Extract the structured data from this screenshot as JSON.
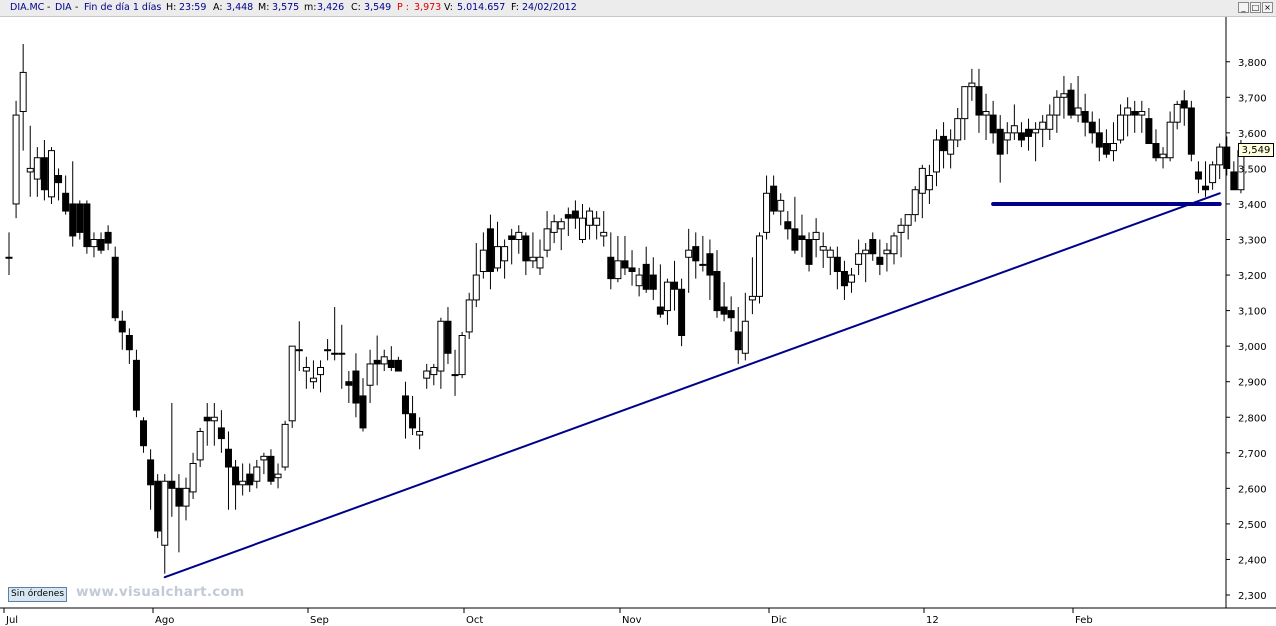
{
  "header": {
    "symbol": "DIA.MC",
    "name": "DIA",
    "period": "Fin de día 1 días",
    "h_label": "H:",
    "h_value": "23:59",
    "a_label": "A:",
    "a_value": "3,448",
    "m_label": "M:",
    "m_value": "3,575",
    "min_label": "m:",
    "min_value": "3,426",
    "c_label": "C:",
    "c_value": "3,549",
    "p_label": "P :",
    "p_value": "3,973",
    "v_label": "V:",
    "v_value": "5.014.657",
    "f_label": "F:",
    "f_value": "24/02/2012"
  },
  "window_buttons": {
    "minimize": "_",
    "maximize": "□",
    "close": "×"
  },
  "orders_button": "Sin órdenes",
  "watermark": "www.visualchart.com",
  "last_price_tag": "3,549",
  "colors": {
    "up_fill": "#ffffff",
    "down_fill": "#000000",
    "trendline": "#00008b",
    "background": "#ffffff"
  },
  "chart_data": {
    "type": "candlestick",
    "x_labels": [
      "Jul",
      "Ago",
      "Sep",
      "Oct",
      "Nov",
      "Dic",
      "12",
      "Feb"
    ],
    "x_label_index": [
      0,
      21,
      43,
      65,
      87,
      108,
      130,
      151
    ],
    "y_ticks": [
      "2,300",
      "2,400",
      "2,500",
      "2,600",
      "2,700",
      "2,800",
      "2,900",
      "3,000",
      "3,100",
      "3,200",
      "3,300",
      "3,400",
      "3,500",
      "3,600",
      "3,700",
      "3,800"
    ],
    "ylim": [
      2.27,
      3.93
    ],
    "candles": [
      [
        3.25,
        3.32,
        3.2,
        3.25
      ],
      [
        3.4,
        3.69,
        3.36,
        3.65
      ],
      [
        3.66,
        3.85,
        3.55,
        3.77
      ],
      [
        3.49,
        3.62,
        3.42,
        3.5
      ],
      [
        3.47,
        3.56,
        3.42,
        3.53
      ],
      [
        3.53,
        3.58,
        3.41,
        3.44
      ],
      [
        3.42,
        3.56,
        3.4,
        3.55
      ],
      [
        3.48,
        3.5,
        3.41,
        3.46
      ],
      [
        3.43,
        3.48,
        3.37,
        3.38
      ],
      [
        3.4,
        3.52,
        3.28,
        3.31
      ],
      [
        3.4,
        3.41,
        3.3,
        3.32
      ],
      [
        3.4,
        3.41,
        3.26,
        3.28
      ],
      [
        3.28,
        3.32,
        3.25,
        3.3
      ],
      [
        3.3,
        3.32,
        3.26,
        3.27
      ],
      [
        3.32,
        3.34,
        3.27,
        3.29
      ],
      [
        3.25,
        3.28,
        3.07,
        3.08
      ],
      [
        3.07,
        3.1,
        2.99,
        3.04
      ],
      [
        3.03,
        3.05,
        2.95,
        2.99
      ],
      [
        2.96,
        2.99,
        2.8,
        2.82
      ],
      [
        2.79,
        2.8,
        2.7,
        2.72
      ],
      [
        2.68,
        2.71,
        2.54,
        2.61
      ],
      [
        2.62,
        2.64,
        2.46,
        2.48
      ],
      [
        2.44,
        2.64,
        2.36,
        2.62
      ],
      [
        2.62,
        2.84,
        2.52,
        2.6
      ],
      [
        2.6,
        2.64,
        2.42,
        2.55
      ],
      [
        2.55,
        2.63,
        2.51,
        2.6
      ],
      [
        2.59,
        2.7,
        2.57,
        2.67
      ],
      [
        2.68,
        2.77,
        2.66,
        2.76
      ],
      [
        2.8,
        2.84,
        2.72,
        2.79
      ],
      [
        2.79,
        2.84,
        2.72,
        2.8
      ],
      [
        2.77,
        2.82,
        2.7,
        2.74
      ],
      [
        2.71,
        2.76,
        2.54,
        2.66
      ],
      [
        2.66,
        2.68,
        2.54,
        2.61
      ],
      [
        2.61,
        2.67,
        2.58,
        2.62
      ],
      [
        2.64,
        2.67,
        2.59,
        2.61
      ],
      [
        2.62,
        2.68,
        2.6,
        2.66
      ],
      [
        2.68,
        2.7,
        2.64,
        2.69
      ],
      [
        2.69,
        2.71,
        2.61,
        2.62
      ],
      [
        2.63,
        2.67,
        2.6,
        2.64
      ],
      [
        2.66,
        2.79,
        2.65,
        2.78
      ],
      [
        2.79,
        3.0,
        2.77,
        3.0
      ],
      [
        2.99,
        3.07,
        2.93,
        2.99
      ],
      [
        2.93,
        2.97,
        2.88,
        2.94
      ],
      [
        2.9,
        2.96,
        2.88,
        2.91
      ],
      [
        2.92,
        2.96,
        2.87,
        2.94
      ],
      [
        2.99,
        3.02,
        2.96,
        2.99
      ],
      [
        2.98,
        3.11,
        2.96,
        2.98
      ],
      [
        2.98,
        3.06,
        2.88,
        2.98
      ],
      [
        2.9,
        2.93,
        2.84,
        2.89
      ],
      [
        2.93,
        2.98,
        2.8,
        2.84
      ],
      [
        2.86,
        2.91,
        2.76,
        2.77
      ],
      [
        2.89,
        2.99,
        2.84,
        2.95
      ],
      [
        2.96,
        3.03,
        2.89,
        2.95
      ],
      [
        2.95,
        2.99,
        2.93,
        2.97
      ],
      [
        2.96,
        3.0,
        2.93,
        2.94
      ],
      [
        2.96,
        2.97,
        2.93,
        2.93
      ],
      [
        2.86,
        2.9,
        2.74,
        2.81
      ],
      [
        2.81,
        2.86,
        2.75,
        2.77
      ],
      [
        2.75,
        2.8,
        2.71,
        2.76
      ],
      [
        2.91,
        2.95,
        2.88,
        2.93
      ],
      [
        2.92,
        2.95,
        2.89,
        2.94
      ],
      [
        2.93,
        3.08,
        2.88,
        3.07
      ],
      [
        3.07,
        3.11,
        2.95,
        2.98
      ],
      [
        2.92,
        2.99,
        2.86,
        2.92
      ],
      [
        2.92,
        3.04,
        2.91,
        3.03
      ],
      [
        3.04,
        3.15,
        3.02,
        3.13
      ],
      [
        3.13,
        3.29,
        3.11,
        3.2
      ],
      [
        3.21,
        3.32,
        3.19,
        3.27
      ],
      [
        3.33,
        3.37,
        3.16,
        3.21
      ],
      [
        3.22,
        3.35,
        3.21,
        3.28
      ],
      [
        3.24,
        3.3,
        3.19,
        3.28
      ],
      [
        3.31,
        3.33,
        3.23,
        3.3
      ],
      [
        3.3,
        3.34,
        3.26,
        3.32
      ],
      [
        3.31,
        3.32,
        3.2,
        3.24
      ],
      [
        3.24,
        3.32,
        3.22,
        3.25
      ],
      [
        3.22,
        3.3,
        3.2,
        3.25
      ],
      [
        3.27,
        3.38,
        3.25,
        3.33
      ],
      [
        3.32,
        3.37,
        3.29,
        3.35
      ],
      [
        3.33,
        3.36,
        3.27,
        3.35
      ],
      [
        3.37,
        3.39,
        3.31,
        3.36
      ],
      [
        3.38,
        3.41,
        3.33,
        3.36
      ],
      [
        3.3,
        3.4,
        3.29,
        3.36
      ],
      [
        3.34,
        3.39,
        3.3,
        3.38
      ],
      [
        3.34,
        3.38,
        3.3,
        3.36
      ],
      [
        3.31,
        3.38,
        3.28,
        3.32
      ],
      [
        3.25,
        3.32,
        3.16,
        3.19
      ],
      [
        3.19,
        3.31,
        3.18,
        3.24
      ],
      [
        3.24,
        3.31,
        3.2,
        3.22
      ],
      [
        3.22,
        3.27,
        3.17,
        3.21
      ],
      [
        3.17,
        3.22,
        3.14,
        3.2
      ],
      [
        3.23,
        3.28,
        3.15,
        3.16
      ],
      [
        3.2,
        3.25,
        3.13,
        3.16
      ],
      [
        3.11,
        3.23,
        3.08,
        3.09
      ],
      [
        3.1,
        3.19,
        3.06,
        3.18
      ],
      [
        3.18,
        3.24,
        3.1,
        3.16
      ],
      [
        3.16,
        3.19,
        3.0,
        3.03
      ],
      [
        3.25,
        3.33,
        3.15,
        3.27
      ],
      [
        3.28,
        3.32,
        3.19,
        3.24
      ],
      [
        3.23,
        3.31,
        3.21,
        3.23
      ],
      [
        3.26,
        3.3,
        3.13,
        3.2
      ],
      [
        3.21,
        3.27,
        3.08,
        3.1
      ],
      [
        3.11,
        3.18,
        3.07,
        3.09
      ],
      [
        3.1,
        3.14,
        3.04,
        3.08
      ],
      [
        3.04,
        3.11,
        2.95,
        2.99
      ],
      [
        2.98,
        3.15,
        2.96,
        3.07
      ],
      [
        3.13,
        3.25,
        3.09,
        3.14
      ],
      [
        3.14,
        3.32,
        3.12,
        3.31
      ],
      [
        3.32,
        3.48,
        3.3,
        3.43
      ],
      [
        3.45,
        3.48,
        3.37,
        3.38
      ],
      [
        3.38,
        3.43,
        3.34,
        3.41
      ],
      [
        3.35,
        3.38,
        3.3,
        3.33
      ],
      [
        3.33,
        3.42,
        3.26,
        3.27
      ],
      [
        3.31,
        3.37,
        3.25,
        3.3
      ],
      [
        3.3,
        3.32,
        3.21,
        3.23
      ],
      [
        3.3,
        3.36,
        3.25,
        3.32
      ],
      [
        3.27,
        3.32,
        3.22,
        3.28
      ],
      [
        3.25,
        3.28,
        3.2,
        3.27
      ],
      [
        3.25,
        3.28,
        3.16,
        3.21
      ],
      [
        3.21,
        3.24,
        3.13,
        3.17
      ],
      [
        3.18,
        3.22,
        3.15,
        3.2
      ],
      [
        3.23,
        3.3,
        3.2,
        3.26
      ],
      [
        3.26,
        3.29,
        3.18,
        3.27
      ],
      [
        3.3,
        3.32,
        3.24,
        3.26
      ],
      [
        3.25,
        3.3,
        3.2,
        3.23
      ],
      [
        3.26,
        3.29,
        3.21,
        3.27
      ],
      [
        3.26,
        3.32,
        3.23,
        3.31
      ],
      [
        3.32,
        3.36,
        3.25,
        3.34
      ],
      [
        3.34,
        3.36,
        3.3,
        3.37
      ],
      [
        3.37,
        3.45,
        3.35,
        3.44
      ],
      [
        3.43,
        3.51,
        3.36,
        3.5
      ],
      [
        3.44,
        3.51,
        3.4,
        3.48
      ],
      [
        3.49,
        3.61,
        3.45,
        3.58
      ],
      [
        3.59,
        3.63,
        3.5,
        3.55
      ],
      [
        3.54,
        3.61,
        3.5,
        3.58
      ],
      [
        3.58,
        3.67,
        3.56,
        3.64
      ],
      [
        3.64,
        3.72,
        3.58,
        3.73
      ],
      [
        3.73,
        3.78,
        3.69,
        3.74
      ],
      [
        3.73,
        3.78,
        3.6,
        3.65
      ],
      [
        3.65,
        3.71,
        3.58,
        3.66
      ],
      [
        3.65,
        3.69,
        3.57,
        3.6
      ],
      [
        3.61,
        3.65,
        3.46,
        3.54
      ],
      [
        3.58,
        3.63,
        3.54,
        3.6
      ],
      [
        3.6,
        3.68,
        3.58,
        3.62
      ],
      [
        3.6,
        3.63,
        3.56,
        3.58
      ],
      [
        3.61,
        3.64,
        3.55,
        3.59
      ],
      [
        3.6,
        3.63,
        3.52,
        3.61
      ],
      [
        3.61,
        3.65,
        3.56,
        3.63
      ],
      [
        3.61,
        3.68,
        3.58,
        3.65
      ],
      [
        3.65,
        3.72,
        3.6,
        3.7
      ],
      [
        3.7,
        3.76,
        3.64,
        3.71
      ],
      [
        3.72,
        3.74,
        3.64,
        3.65
      ],
      [
        3.65,
        3.76,
        3.63,
        3.67
      ],
      [
        3.66,
        3.71,
        3.59,
        3.63
      ],
      [
        3.63,
        3.66,
        3.57,
        3.6
      ],
      [
        3.6,
        3.64,
        3.52,
        3.56
      ],
      [
        3.57,
        3.61,
        3.53,
        3.54
      ],
      [
        3.55,
        3.63,
        3.52,
        3.57
      ],
      [
        3.58,
        3.68,
        3.57,
        3.65
      ],
      [
        3.65,
        3.7,
        3.59,
        3.67
      ],
      [
        3.66,
        3.69,
        3.6,
        3.65
      ],
      [
        3.65,
        3.69,
        3.6,
        3.66
      ],
      [
        3.64,
        3.67,
        3.57,
        3.57
      ],
      [
        3.57,
        3.61,
        3.52,
        3.53
      ],
      [
        3.53,
        3.56,
        3.5,
        3.54
      ],
      [
        3.53,
        3.66,
        3.52,
        3.63
      ],
      [
        3.63,
        3.69,
        3.61,
        3.68
      ],
      [
        3.69,
        3.72,
        3.62,
        3.67
      ],
      [
        3.67,
        3.69,
        3.52,
        3.54
      ],
      [
        3.49,
        3.52,
        3.43,
        3.47
      ],
      [
        3.45,
        3.52,
        3.42,
        3.44
      ],
      [
        3.46,
        3.52,
        3.44,
        3.51
      ],
      [
        3.51,
        3.57,
        3.47,
        3.56
      ],
      [
        3.56,
        3.59,
        3.48,
        3.5
      ],
      [
        3.49,
        3.52,
        3.45,
        3.44
      ],
      [
        3.44,
        3.58,
        3.43,
        3.55
      ]
    ],
    "trendlines": [
      {
        "from": [
          22,
          2.35
        ],
        "to": [
          171,
          3.43
        ],
        "width": 2
      },
      {
        "from": [
          139,
          3.4
        ],
        "to": [
          171,
          3.4
        ],
        "width": 4
      }
    ]
  }
}
